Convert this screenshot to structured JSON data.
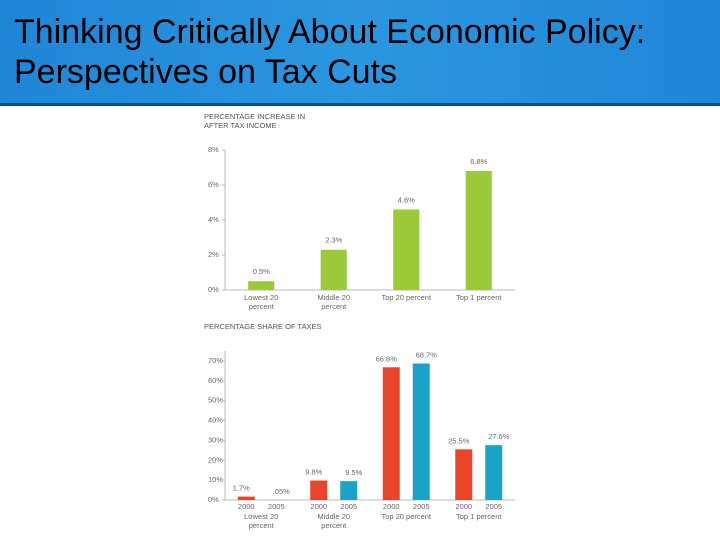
{
  "title": "Thinking Critically About Economic Policy: Perspectives on Tax Cuts",
  "chart_data": [
    {
      "type": "bar",
      "title": "PERCENTAGE INCREASE IN AFTER TAX INCOME",
      "categories": [
        "Lowest 20 percent",
        "Middle 20 percent",
        "Top 20 percent",
        "Top 1 percent"
      ],
      "values": [
        0.5,
        2.3,
        4.6,
        6.8
      ],
      "value_labels": [
        "0.5%",
        "2.3%",
        "4.6%",
        "6.8%"
      ],
      "color": "#9ac93a",
      "ylim": [
        0,
        8
      ],
      "yticks": [
        {
          "value": 0,
          "label": "0%"
        },
        {
          "value": 2,
          "label": "2%"
        },
        {
          "value": 4,
          "label": "4%"
        },
        {
          "value": 6,
          "label": "6%"
        },
        {
          "value": 8,
          "label": "8%"
        }
      ]
    },
    {
      "type": "grouped_bar",
      "title": "PERCENTAGE SHARE OF TAXES",
      "categories": [
        "Lowest 20 percent",
        "Middle 20 percent",
        "Top 20 percent",
        "Top 1 percent"
      ],
      "series": [
        {
          "name": "2000",
          "color": "#e8452a",
          "values": [
            1.7,
            9.8,
            66.8,
            25.5
          ],
          "value_labels": [
            "1.7%",
            "9.8%",
            "66.8%",
            "25.5%"
          ]
        },
        {
          "name": "2005",
          "color": "#1aa3c8",
          "values": [
            0.05,
            9.5,
            68.7,
            27.6
          ],
          "value_labels": [
            ".05%",
            "9.5%",
            "68.7%",
            "27.6%"
          ]
        }
      ],
      "ylim": [
        0,
        75
      ],
      "yticks": [
        {
          "value": 0,
          "label": "0%"
        },
        {
          "value": 10,
          "label": "10%"
        },
        {
          "value": 20,
          "label": "20%"
        },
        {
          "value": 30,
          "label": "30%"
        },
        {
          "value": 40,
          "label": "40%"
        },
        {
          "value": 50,
          "label": "50%"
        },
        {
          "value": 60,
          "label": "60%"
        },
        {
          "value": 70,
          "label": "70%"
        }
      ]
    }
  ]
}
